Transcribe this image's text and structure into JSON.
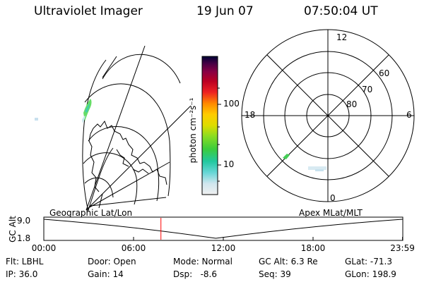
{
  "header": {
    "title": "Ultraviolet Imager",
    "date": "19 Jun 07",
    "time": "07:50:04 UT"
  },
  "colorbar": {
    "label": "photon cm⁻²s⁻¹",
    "ticks": [
      {
        "label": "100",
        "value": 100
      },
      {
        "label": "10",
        "value": 10
      }
    ]
  },
  "polar": {
    "mlt_labels": {
      "top": "12",
      "left": "18",
      "right": "6",
      "bottom": "0"
    },
    "lat_labels": [
      "60",
      "70",
      "80"
    ]
  },
  "timeline": {
    "left_title": "Geographic Lat/Lon",
    "right_title": "Apex MLat/MLT",
    "ylabel": "GC Alt",
    "y_ticks": [
      "9.0",
      "1.8"
    ],
    "x_ticks": [
      "00:00",
      "06:00",
      "12:00",
      "18:00",
      "23:59"
    ],
    "current_time_hours": 7.83,
    "orbit_altitude_re": [
      {
        "t": 0,
        "alt": 9.0
      },
      {
        "t": 11.5,
        "alt": 1.8
      },
      {
        "t": 23.98,
        "alt": 9.0
      }
    ],
    "marker_color": "#ff0000"
  },
  "status": {
    "flt": "Flt: LBHL",
    "ip": "IP: 36.0",
    "door": "Door: Open",
    "gain": "Gain: 14",
    "mode": "Mode: Normal",
    "dsp": "Dsp:   -8.6",
    "gc_alt": "GC Alt: 6.3 Re",
    "seq": "Seq: 39",
    "glat": "GLat: -71.3",
    "glon": "GLon: 198.9"
  }
}
